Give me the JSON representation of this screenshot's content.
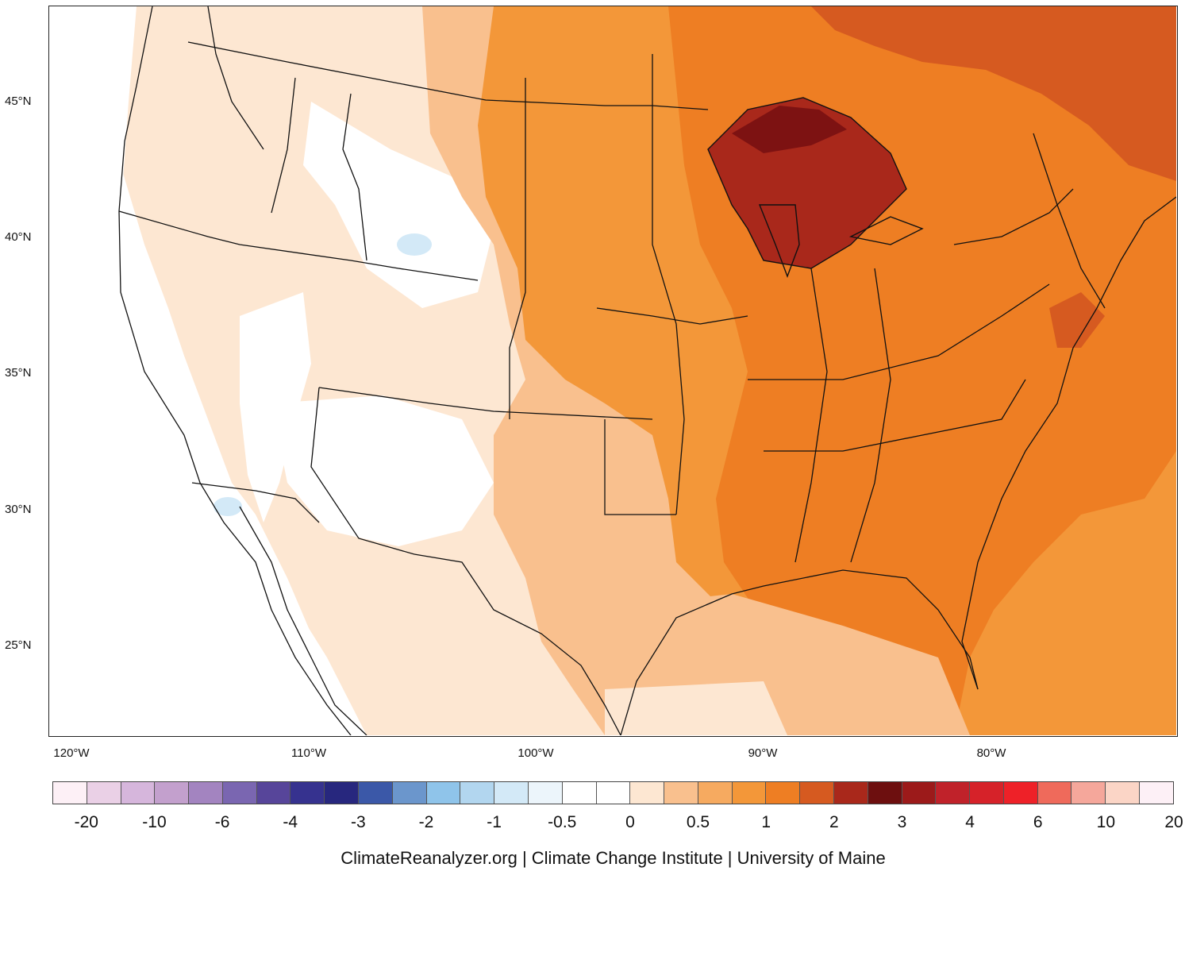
{
  "map": {
    "lat_labels": [
      "45°N",
      "40°N",
      "35°N",
      "30°N",
      "25°N"
    ],
    "lon_labels": [
      "120°W",
      "110°W",
      "100°W",
      "90°W",
      "80°W"
    ],
    "colors": {
      "white": "#ffffff",
      "c05": "#fde7d2",
      "c1": "#f9c08e",
      "c1b": "#f6aa60",
      "c2": "#f39739",
      "c2b": "#ee7e23",
      "c3": "#d65a20",
      "c4": "#a9281b",
      "c5": "#7d1212",
      "cold": "#d3e9f7"
    }
  },
  "colorbar": {
    "colors": [
      "#fdf0f6",
      "#ead0e6",
      "#d6b6dc",
      "#c3a0cd",
      "#a384c0",
      "#7a66b1",
      "#57459a",
      "#36328f",
      "#27277e",
      "#3b58a8",
      "#6b96cc",
      "#8fc4ea",
      "#b2d6ef",
      "#d3e9f7",
      "#ecf5fb",
      "#ffffff",
      "#ffffff",
      "#fde7d2",
      "#f9c08e",
      "#f6aa60",
      "#f39739",
      "#ee7e23",
      "#d65a20",
      "#a9281b",
      "#6d0f0f",
      "#9c1a1a",
      "#c0222a",
      "#d62229",
      "#ee2128",
      "#ef6a5b",
      "#f5a79b",
      "#fbd5c6",
      "#fdf0f6"
    ],
    "labels": [
      "-20",
      "-10",
      "-6",
      "-4",
      "-3",
      "-2",
      "-1",
      "-0.5",
      "0",
      "0.5",
      "1",
      "2",
      "3",
      "4",
      "6",
      "10",
      "20"
    ]
  },
  "credit": "ClimateReanalyzer.org | Climate Change Institute | University of Maine"
}
